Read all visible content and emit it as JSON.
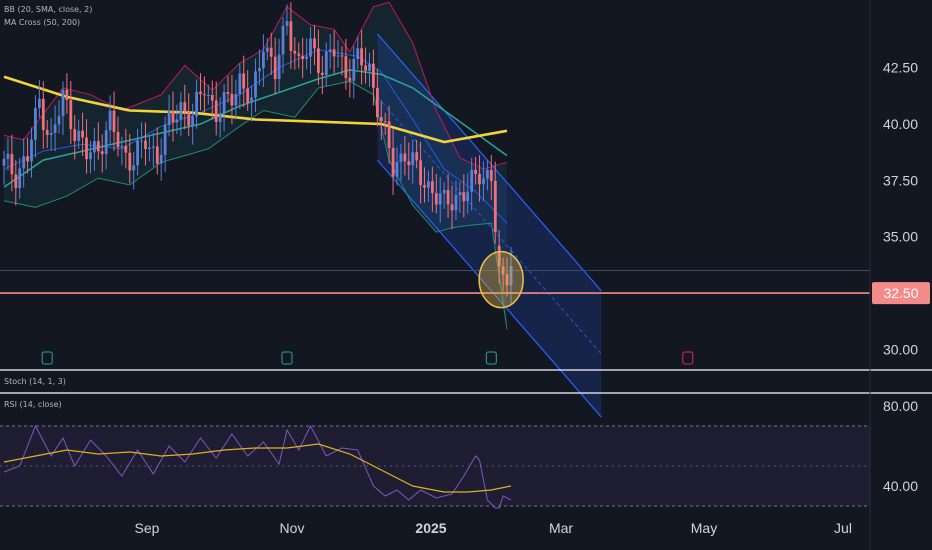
{
  "indicators": {
    "bb": "BB (20, SMA, close, 2)",
    "ma": "MA Cross (50, 200)",
    "stoch": "Stoch (14, 1, 3)",
    "rsi": "RSI (14, close)"
  },
  "colors": {
    "background": "#131722",
    "up": "#5b7fd6",
    "down": "#ef6f7a",
    "ma200": "#f0d43a",
    "ma50": "#26a69a",
    "bb_upper": "#c2185b",
    "bb_lower": "#1e8e6e",
    "bb_basis": "#2962ff",
    "channel": "#2962ff",
    "support": "#f48a8a",
    "circle": "#f0c040",
    "rsi": "#7e57c2",
    "rsi_ma": "#e0b020",
    "earnings": "#26a69a",
    "earnings_future": "#e91e63"
  },
  "chart_data": [
    {
      "type": "candlestick",
      "pane": "price",
      "x_axis": {
        "ticks": [
          {
            "label": "Sep",
            "bold": false
          },
          {
            "label": "Nov",
            "bold": false
          },
          {
            "label": "2025",
            "bold": true
          },
          {
            "label": "Mar",
            "bold": false
          },
          {
            "label": "May",
            "bold": false
          },
          {
            "label": "Jul",
            "bold": false
          }
        ]
      },
      "y_axis": {
        "range": [
          29,
          45.5
        ],
        "ticks": [
          "42.50",
          "40.00",
          "37.50",
          "35.00",
          "30.00"
        ]
      },
      "price_label": "32.50",
      "support_level": 32.5,
      "series": [
        {
          "name": "close",
          "x": [
            0,
            3,
            6,
            9,
            12,
            15,
            18,
            21,
            24,
            27,
            30,
            33,
            36,
            39,
            42,
            45,
            48,
            51,
            54,
            57,
            60,
            63,
            66,
            69,
            72,
            75,
            78,
            81,
            84,
            87,
            90,
            93,
            96,
            99,
            102,
            103,
            106,
            109,
            112,
            115,
            118,
            121,
            124,
            126,
            127,
            129
          ],
          "values": [
            38.2,
            37.8,
            38.5,
            41.0,
            39.2,
            41.2,
            39.8,
            38.6,
            39.0,
            40.0,
            38.8,
            38.4,
            39.2,
            38.6,
            40.0,
            40.8,
            40.2,
            41.8,
            40.4,
            41.0,
            42.0,
            40.8,
            43.8,
            42.2,
            44.6,
            42.6,
            43.4,
            42.6,
            43.2,
            42.4,
            42.8,
            42.4,
            40.2,
            38.0,
            38.8,
            38.5,
            37.6,
            37.1,
            36.4,
            36.8,
            37.0,
            37.9,
            37.6,
            33.2,
            32.9,
            33.7
          ]
        },
        {
          "name": "ma200",
          "x": [
            0,
            16,
            32,
            48,
            64,
            80,
            96,
            112,
            128
          ],
          "values": [
            42.1,
            41.2,
            40.6,
            40.5,
            40.2,
            40.1,
            40.0,
            39.2,
            39.7
          ]
        },
        {
          "name": "ma50",
          "x": [
            0,
            10,
            20,
            30,
            40,
            50,
            60,
            70,
            80,
            88,
            96,
            104,
            112,
            120,
            128
          ],
          "values": [
            37.2,
            38.4,
            38.8,
            39.2,
            39.6,
            40.0,
            40.8,
            41.4,
            42.0,
            42.4,
            42.2,
            41.6,
            40.6,
            39.6,
            38.6
          ]
        },
        {
          "name": "bb_upper",
          "x": [
            0,
            5,
            15,
            22,
            30,
            40,
            46,
            53,
            60,
            66,
            72,
            78,
            84,
            88,
            94,
            98,
            104,
            110,
            116,
            122,
            128
          ],
          "values": [
            39.5,
            39.3,
            41.6,
            41.3,
            40.6,
            41.3,
            42.6,
            41.5,
            42.7,
            43.3,
            45.2,
            44.4,
            44.2,
            43.2,
            45.2,
            45.4,
            43.6,
            40.6,
            38.5,
            38.0,
            38.3
          ]
        },
        {
          "name": "bb_lower",
          "x": [
            0,
            8,
            16,
            24,
            32,
            40,
            46,
            52,
            60,
            66,
            74,
            80,
            88,
            94,
            98,
            104,
            110,
            114,
            118,
            124,
            128
          ],
          "values": [
            36.6,
            36.3,
            36.8,
            37.6,
            37.3,
            38.3,
            38.6,
            38.9,
            39.9,
            40.6,
            40.3,
            41.6,
            41.9,
            41.3,
            38.4,
            36.4,
            35.2,
            35.4,
            35.5,
            35.6,
            30.9
          ]
        },
        {
          "name": "bb_basis",
          "x": [
            0,
            10,
            20,
            30,
            40,
            50,
            60,
            70,
            80,
            90,
            96,
            104,
            112,
            120,
            128
          ],
          "values": [
            38.0,
            38.8,
            39.1,
            38.9,
            39.9,
            40.5,
            41.3,
            42.5,
            43.3,
            43.0,
            42.3,
            40.2,
            38.0,
            37.0,
            35.6
          ]
        }
      ]
    },
    {
      "type": "line",
      "pane": "rsi",
      "y_axis": {
        "range": [
          28,
          86
        ],
        "ticks": [
          "80.00",
          "40.00"
        ],
        "bands": [
          70,
          30
        ],
        "mid": 50
      },
      "series": [
        {
          "name": "rsi",
          "x": [
            0,
            4,
            8,
            12,
            15,
            18,
            22,
            26,
            30,
            34,
            38,
            42,
            46,
            50,
            54,
            58,
            62,
            66,
            70,
            72,
            75,
            78,
            82,
            86,
            90,
            94,
            97,
            100,
            103,
            106,
            110,
            114,
            117,
            120,
            121,
            123,
            125,
            126,
            127,
            129
          ],
          "values": [
            47,
            50,
            70,
            55,
            64,
            50,
            63,
            55,
            45,
            58,
            46,
            60,
            52,
            64,
            54,
            66,
            55,
            62,
            51,
            68,
            58,
            70,
            55,
            59,
            58,
            40,
            35,
            38,
            33,
            38,
            34,
            36,
            45,
            55,
            53,
            33,
            29,
            29,
            35,
            33
          ]
        },
        {
          "name": "rsi_ma",
          "x": [
            0,
            8,
            16,
            24,
            32,
            40,
            48,
            56,
            64,
            72,
            80,
            88,
            96,
            104,
            112,
            118,
            124,
            129
          ],
          "values": [
            52,
            55,
            58,
            56,
            57,
            55,
            56,
            58,
            59,
            59,
            61,
            56,
            48,
            40,
            37,
            37,
            38,
            40
          ]
        }
      ]
    }
  ]
}
